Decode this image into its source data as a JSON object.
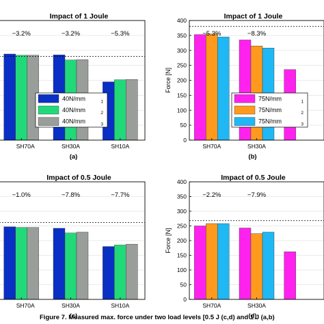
{
  "chart_data": [
    {
      "type": "bar",
      "panel": "(a)",
      "title": "Impact of 1 Joule",
      "categories": [
        "SH70A",
        "SH30A",
        "SH10A"
      ],
      "ylabel": "",
      "ylim": [
        0,
        400
      ],
      "yticks": [],
      "reference_line": 280,
      "percent_labels": [
        "−3.2%",
        "−3.2%",
        "−5.3%"
      ],
      "legend_position": "lower-right",
      "series": [
        {
          "name": "40N/mm",
          "sub": "1",
          "color": "#0a2fc4",
          "values": [
            288,
            285,
            195
          ]
        },
        {
          "name": "40N/mm",
          "sub": "2",
          "color": "#22d97a",
          "values": [
            284,
            268,
            202
          ]
        },
        {
          "name": "40N/mm",
          "sub": "3",
          "color": "#9a9e9b",
          "values": [
            284,
            269,
            203
          ]
        }
      ]
    },
    {
      "type": "bar",
      "panel": "(b)",
      "title": "Impact of 1 Joule",
      "categories": [
        "SH70A",
        "SH30A",
        ""
      ],
      "ylabel": "Force [N]",
      "ylim": [
        0,
        400
      ],
      "yticks": [
        0,
        50,
        100,
        150,
        200,
        250,
        300,
        350,
        400
      ],
      "reference_line": 380,
      "percent_labels": [
        "−5.3%",
        "−8.3%",
        ""
      ],
      "legend_position": "lower-right",
      "series": [
        {
          "name": "75N/mm",
          "sub": "1",
          "color": "#ff22ee",
          "values": [
            353,
            335,
            236
          ]
        },
        {
          "name": "75N/mm",
          "sub": "2",
          "color": "#ff9a1f",
          "values": [
            355,
            315,
            null
          ]
        },
        {
          "name": "75N/mm",
          "sub": "3",
          "color": "#1fb8f5",
          "values": [
            345,
            308,
            null
          ]
        }
      ]
    },
    {
      "type": "bar",
      "panel": "(c)",
      "title": "Impact of 0.5 Joule",
      "categories": [
        "SH70A",
        "SH30A",
        "SH10A"
      ],
      "ylabel": "",
      "ylim": [
        0,
        400
      ],
      "yticks": [],
      "reference_line": 262,
      "percent_labels": [
        "−1.0%",
        "−7.8%",
        "−7.7%"
      ],
      "legend_position": "none",
      "series": [
        {
          "name": "40N/mm",
          "sub": "1",
          "color": "#0a2fc4",
          "values": [
            247,
            242,
            180
          ]
        },
        {
          "name": "40N/mm",
          "sub": "2",
          "color": "#22d97a",
          "values": [
            245,
            226,
            185
          ]
        },
        {
          "name": "40N/mm",
          "sub": "3",
          "color": "#9a9e9b",
          "values": [
            245,
            229,
            188
          ]
        }
      ]
    },
    {
      "type": "bar",
      "panel": "(d)",
      "title": "Impact of 0.5 Joule",
      "categories": [
        "SH70A",
        "SH30A",
        ""
      ],
      "ylabel": "Force [N]",
      "ylim": [
        0,
        400
      ],
      "yticks": [
        0,
        50,
        100,
        150,
        200,
        250,
        300,
        350,
        400
      ],
      "reference_line": 268,
      "percent_labels": [
        "−2.2%",
        "−7.9%",
        ""
      ],
      "legend_position": "none",
      "series": [
        {
          "name": "75N/mm",
          "sub": "1",
          "color": "#ff22ee",
          "values": [
            250,
            243,
            162
          ]
        },
        {
          "name": "75N/mm",
          "sub": "2",
          "color": "#ff9a1f",
          "values": [
            258,
            224,
            null
          ]
        },
        {
          "name": "75N/mm",
          "sub": "3",
          "color": "#1fb8f5",
          "values": [
            258,
            229,
            null
          ]
        }
      ]
    }
  ],
  "figure_caption": "Figure 7. Measured max. force under two load levels [0.5 J (c,d) and 1 J (a,b)"
}
